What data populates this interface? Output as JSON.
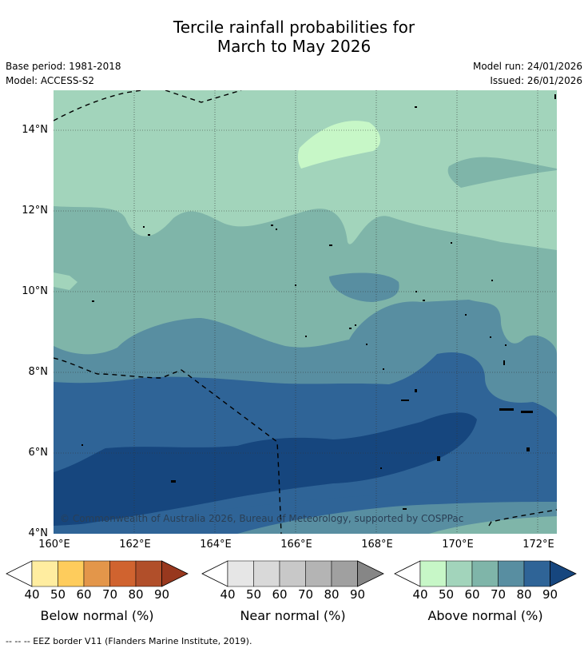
{
  "title": {
    "line1": "Tercile rainfall probabilities for",
    "line2": "March to May 2026"
  },
  "meta": {
    "base_period": "Base period: 1981-2018",
    "model": "Model: ACCESS-S2",
    "model_run": "Model run: 24/01/2026",
    "issued": "Issued: 26/01/2026"
  },
  "map": {
    "copyright": "© Commonwealth of Australia 2026, Bureau of Meteorology, supported by COSPPac",
    "lat_labels": [
      "14°N",
      "12°N",
      "10°N",
      "8°N",
      "6°N",
      "4°N"
    ],
    "lon_labels": [
      "160°E",
      "162°E",
      "164°E",
      "166°E",
      "168°E",
      "170°E",
      "172°E"
    ],
    "lat_range": [
      4,
      15
    ],
    "lon_range": [
      160,
      172.5
    ]
  },
  "colorbars": [
    {
      "label": "Below normal (%)",
      "ticks": [
        "40",
        "50",
        "60",
        "70",
        "80",
        "90"
      ],
      "colors": [
        "#ffeda0",
        "#fecc5c",
        "#e3964a",
        "#d0632f",
        "#b14f2a",
        "#98381e"
      ]
    },
    {
      "label": "Near normal (%)",
      "ticks": [
        "40",
        "50",
        "60",
        "70",
        "80",
        "90"
      ],
      "colors": [
        "#e6e6e6",
        "#d9d9d9",
        "#c8c8c8",
        "#b4b4b4",
        "#a0a0a0",
        "#868686"
      ]
    },
    {
      "label": "Above normal (%)",
      "ticks": [
        "40",
        "50",
        "60",
        "70",
        "80",
        "90"
      ],
      "colors": [
        "#c7f7c7",
        "#a2d4bb",
        "#7fb5a9",
        "#588ea1",
        "#2f6497",
        "#16467e"
      ]
    }
  ],
  "footer": {
    "legend": "--  --  -- EEZ border V11 (Flanders Marine Institute, 2019)."
  }
}
